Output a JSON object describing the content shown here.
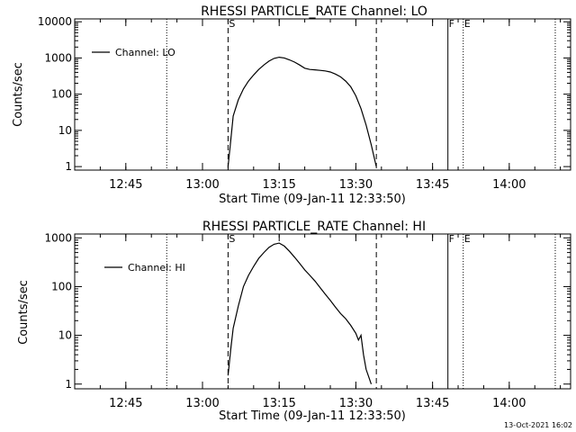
{
  "chart_data": [
    {
      "type": "line",
      "title": "RHESSI PARTICLE_RATE Channel: LO",
      "xlabel": "Start Time (09-Jan-11 12:33:50)",
      "ylabel": "Counts/sec",
      "yscale": "log",
      "xlim": [
        "12:35",
        "14:12"
      ],
      "ylim": [
        0.8,
        12000
      ],
      "xticks": [
        "12:45",
        "13:00",
        "13:15",
        "13:30",
        "13:45",
        "14:00"
      ],
      "yticks": [
        "1",
        "10",
        "100",
        "1000",
        "10000"
      ],
      "legend": "Channel: LO",
      "markers": [
        {
          "time": "12:53",
          "style": "dotted"
        },
        {
          "time": "13:05",
          "style": "dashed",
          "label": "S"
        },
        {
          "time": "13:34",
          "style": "dashed"
        },
        {
          "time": "13:48",
          "style": "solid",
          "label": "F"
        },
        {
          "time": "13:51",
          "style": "dotted",
          "label": "E"
        },
        {
          "time": "14:09",
          "style": "dotted"
        }
      ],
      "series": [
        {
          "name": "Channel: LO",
          "x": [
            "13:05",
            "13:05.5",
            "13:06",
            "13:07",
            "13:08",
            "13:09",
            "13:10",
            "13:11",
            "13:12",
            "13:13",
            "13:14",
            "13:15",
            "13:16",
            "13:17",
            "13:18",
            "13:19",
            "13:20",
            "13:21",
            "13:22",
            "13:23",
            "13:24",
            "13:25",
            "13:26",
            "13:27",
            "13:28",
            "13:29",
            "13:30",
            "13:31",
            "13:32",
            "13:33",
            "13:33.5",
            "13:34"
          ],
          "values": [
            1,
            5,
            25,
            70,
            140,
            230,
            340,
            480,
            640,
            820,
            970,
            1050,
            1000,
            890,
            770,
            640,
            520,
            480,
            470,
            455,
            440,
            410,
            360,
            300,
            230,
            160,
            90,
            40,
            14,
            4,
            2,
            1
          ]
        }
      ]
    },
    {
      "type": "line",
      "title": "RHESSI PARTICLE_RATE Channel: HI",
      "xlabel": "Start Time (09-Jan-11 12:33:50)",
      "ylabel": "Counts/sec",
      "yscale": "log",
      "xlim": [
        "12:35",
        "14:12"
      ],
      "ylim": [
        0.8,
        1200
      ],
      "xticks": [
        "12:45",
        "13:00",
        "13:15",
        "13:30",
        "13:45",
        "14:00"
      ],
      "yticks": [
        "1",
        "10",
        "100",
        "1000"
      ],
      "legend": "Channel: HI",
      "markers": [
        {
          "time": "12:53",
          "style": "dotted"
        },
        {
          "time": "13:05",
          "style": "dashed",
          "label": "S"
        },
        {
          "time": "13:34",
          "style": "dashed"
        },
        {
          "time": "13:48",
          "style": "solid",
          "label": "F"
        },
        {
          "time": "13:51",
          "style": "dotted",
          "label": "E"
        },
        {
          "time": "14:09",
          "style": "dotted"
        }
      ],
      "series": [
        {
          "name": "Channel: HI",
          "x": [
            "13:05",
            "13:05.5",
            "13:06",
            "13:07",
            "13:08",
            "13:09",
            "13:10",
            "13:11",
            "13:12",
            "13:13",
            "13:14",
            "13:15",
            "13:16",
            "13:17",
            "13:18",
            "13:19",
            "13:20",
            "13:21",
            "13:22",
            "13:23",
            "13:24",
            "13:25",
            "13:26",
            "13:27",
            "13:28",
            "13:29",
            "13:30",
            "13:30.5",
            "13:31",
            "13:31.5",
            "13:32",
            "13:33"
          ],
          "values": [
            1.5,
            5,
            14,
            40,
            100,
            170,
            260,
            380,
            500,
            640,
            740,
            780,
            680,
            530,
            400,
            300,
            220,
            170,
            130,
            95,
            70,
            52,
            38,
            28,
            22,
            16,
            11,
            8,
            10,
            4,
            2,
            1
          ]
        }
      ]
    }
  ],
  "footer": {
    "timestamp": "13-Oct-2021 16:02"
  }
}
